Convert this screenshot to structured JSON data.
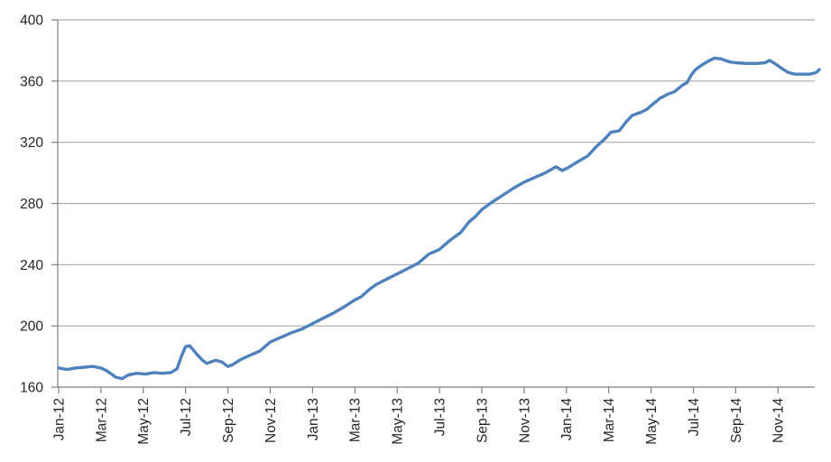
{
  "colors": {
    "line": "#4F81BD",
    "gridline": "#ABABAB",
    "axis": "#7F7F7F",
    "label": "#262626",
    "background": "#FFFFFF"
  },
  "chart_data": {
    "type": "line",
    "title": "",
    "xlabel": "",
    "ylabel": "",
    "legend": "none",
    "grid": "horizontal",
    "ylim": [
      160,
      400
    ],
    "y_ticks": [
      160,
      200,
      240,
      280,
      320,
      360,
      400
    ],
    "x_tick_months": [
      0,
      2,
      4,
      6,
      8,
      10,
      12,
      14,
      16,
      18,
      20,
      22,
      24,
      26,
      28,
      30,
      32,
      34
    ],
    "x_tick_labels": [
      "Jan-12",
      "Mar-12",
      "May-12",
      "Jul-12",
      "Sep-12",
      "Nov-12",
      "Jan-13",
      "Mar-13",
      "May-13",
      "Jul-13",
      "Sep-13",
      "Nov-13",
      "Jan-14",
      "Mar-14",
      "May-14",
      "Jul-14",
      "Sep-14",
      "Nov-14"
    ],
    "series": [
      {
        "name": "series-1",
        "color": "#4F81BD",
        "points": [
          [
            0.0,
            172.5
          ],
          [
            0.4,
            171.5
          ],
          [
            0.8,
            172.5
          ],
          [
            1.2,
            173
          ],
          [
            1.6,
            173.5
          ],
          [
            2.0,
            172.5
          ],
          [
            2.3,
            170.5
          ],
          [
            2.7,
            166.5
          ],
          [
            3.0,
            165.5
          ],
          [
            3.3,
            168
          ],
          [
            3.7,
            169
          ],
          [
            4.1,
            168.5
          ],
          [
            4.5,
            169.5
          ],
          [
            4.9,
            169
          ],
          [
            5.3,
            169.5
          ],
          [
            5.6,
            172
          ],
          [
            5.8,
            180
          ],
          [
            6.0,
            186.5
          ],
          [
            6.2,
            187
          ],
          [
            6.5,
            182
          ],
          [
            6.8,
            177.5
          ],
          [
            7.0,
            175.5
          ],
          [
            7.4,
            177.5
          ],
          [
            7.7,
            176.5
          ],
          [
            8.0,
            173.5
          ],
          [
            8.2,
            174.5
          ],
          [
            8.6,
            178
          ],
          [
            9.0,
            180.5
          ],
          [
            9.5,
            183.5
          ],
          [
            10.0,
            189.5
          ],
          [
            10.5,
            192.5
          ],
          [
            11.0,
            195.5
          ],
          [
            11.5,
            198
          ],
          [
            12.0,
            201.5
          ],
          [
            12.5,
            205
          ],
          [
            13.0,
            208.5
          ],
          [
            13.5,
            212.5
          ],
          [
            14.0,
            217
          ],
          [
            14.3,
            219
          ],
          [
            14.7,
            224
          ],
          [
            15.0,
            227
          ],
          [
            15.5,
            230.5
          ],
          [
            16.0,
            234
          ],
          [
            16.5,
            237.5
          ],
          [
            17.0,
            241
          ],
          [
            17.5,
            247
          ],
          [
            18.0,
            250
          ],
          [
            18.5,
            256
          ],
          [
            19.0,
            261
          ],
          [
            19.4,
            268
          ],
          [
            19.7,
            271.5
          ],
          [
            20.0,
            276
          ],
          [
            20.5,
            281
          ],
          [
            21.0,
            285.5
          ],
          [
            21.5,
            290
          ],
          [
            22.0,
            294
          ],
          [
            22.5,
            297
          ],
          [
            23.0,
            300
          ],
          [
            23.5,
            304
          ],
          [
            23.8,
            301.5
          ],
          [
            24.1,
            303.5
          ],
          [
            24.5,
            307
          ],
          [
            25.0,
            311
          ],
          [
            25.4,
            317
          ],
          [
            25.8,
            322
          ],
          [
            26.1,
            326.5
          ],
          [
            26.5,
            327.5
          ],
          [
            26.8,
            333
          ],
          [
            27.1,
            337.5
          ],
          [
            27.5,
            339.5
          ],
          [
            27.8,
            341.5
          ],
          [
            28.0,
            344
          ],
          [
            28.4,
            348.5
          ],
          [
            28.8,
            351.5
          ],
          [
            29.1,
            353
          ],
          [
            29.5,
            357.5
          ],
          [
            29.7,
            359
          ],
          [
            29.9,
            364
          ],
          [
            30.1,
            367.5
          ],
          [
            30.4,
            370.5
          ],
          [
            30.7,
            373
          ],
          [
            31.0,
            375
          ],
          [
            31.3,
            374.5
          ],
          [
            31.7,
            372.5
          ],
          [
            32.0,
            372
          ],
          [
            32.5,
            371.5
          ],
          [
            33.0,
            371.5
          ],
          [
            33.4,
            372
          ],
          [
            33.6,
            373.5
          ],
          [
            33.9,
            371
          ],
          [
            34.2,
            368
          ],
          [
            34.5,
            365.5
          ],
          [
            34.8,
            364.5
          ],
          [
            35.2,
            364.5
          ],
          [
            35.5,
            364.5
          ],
          [
            35.8,
            365.5
          ],
          [
            35.95,
            367.5
          ]
        ]
      }
    ]
  }
}
